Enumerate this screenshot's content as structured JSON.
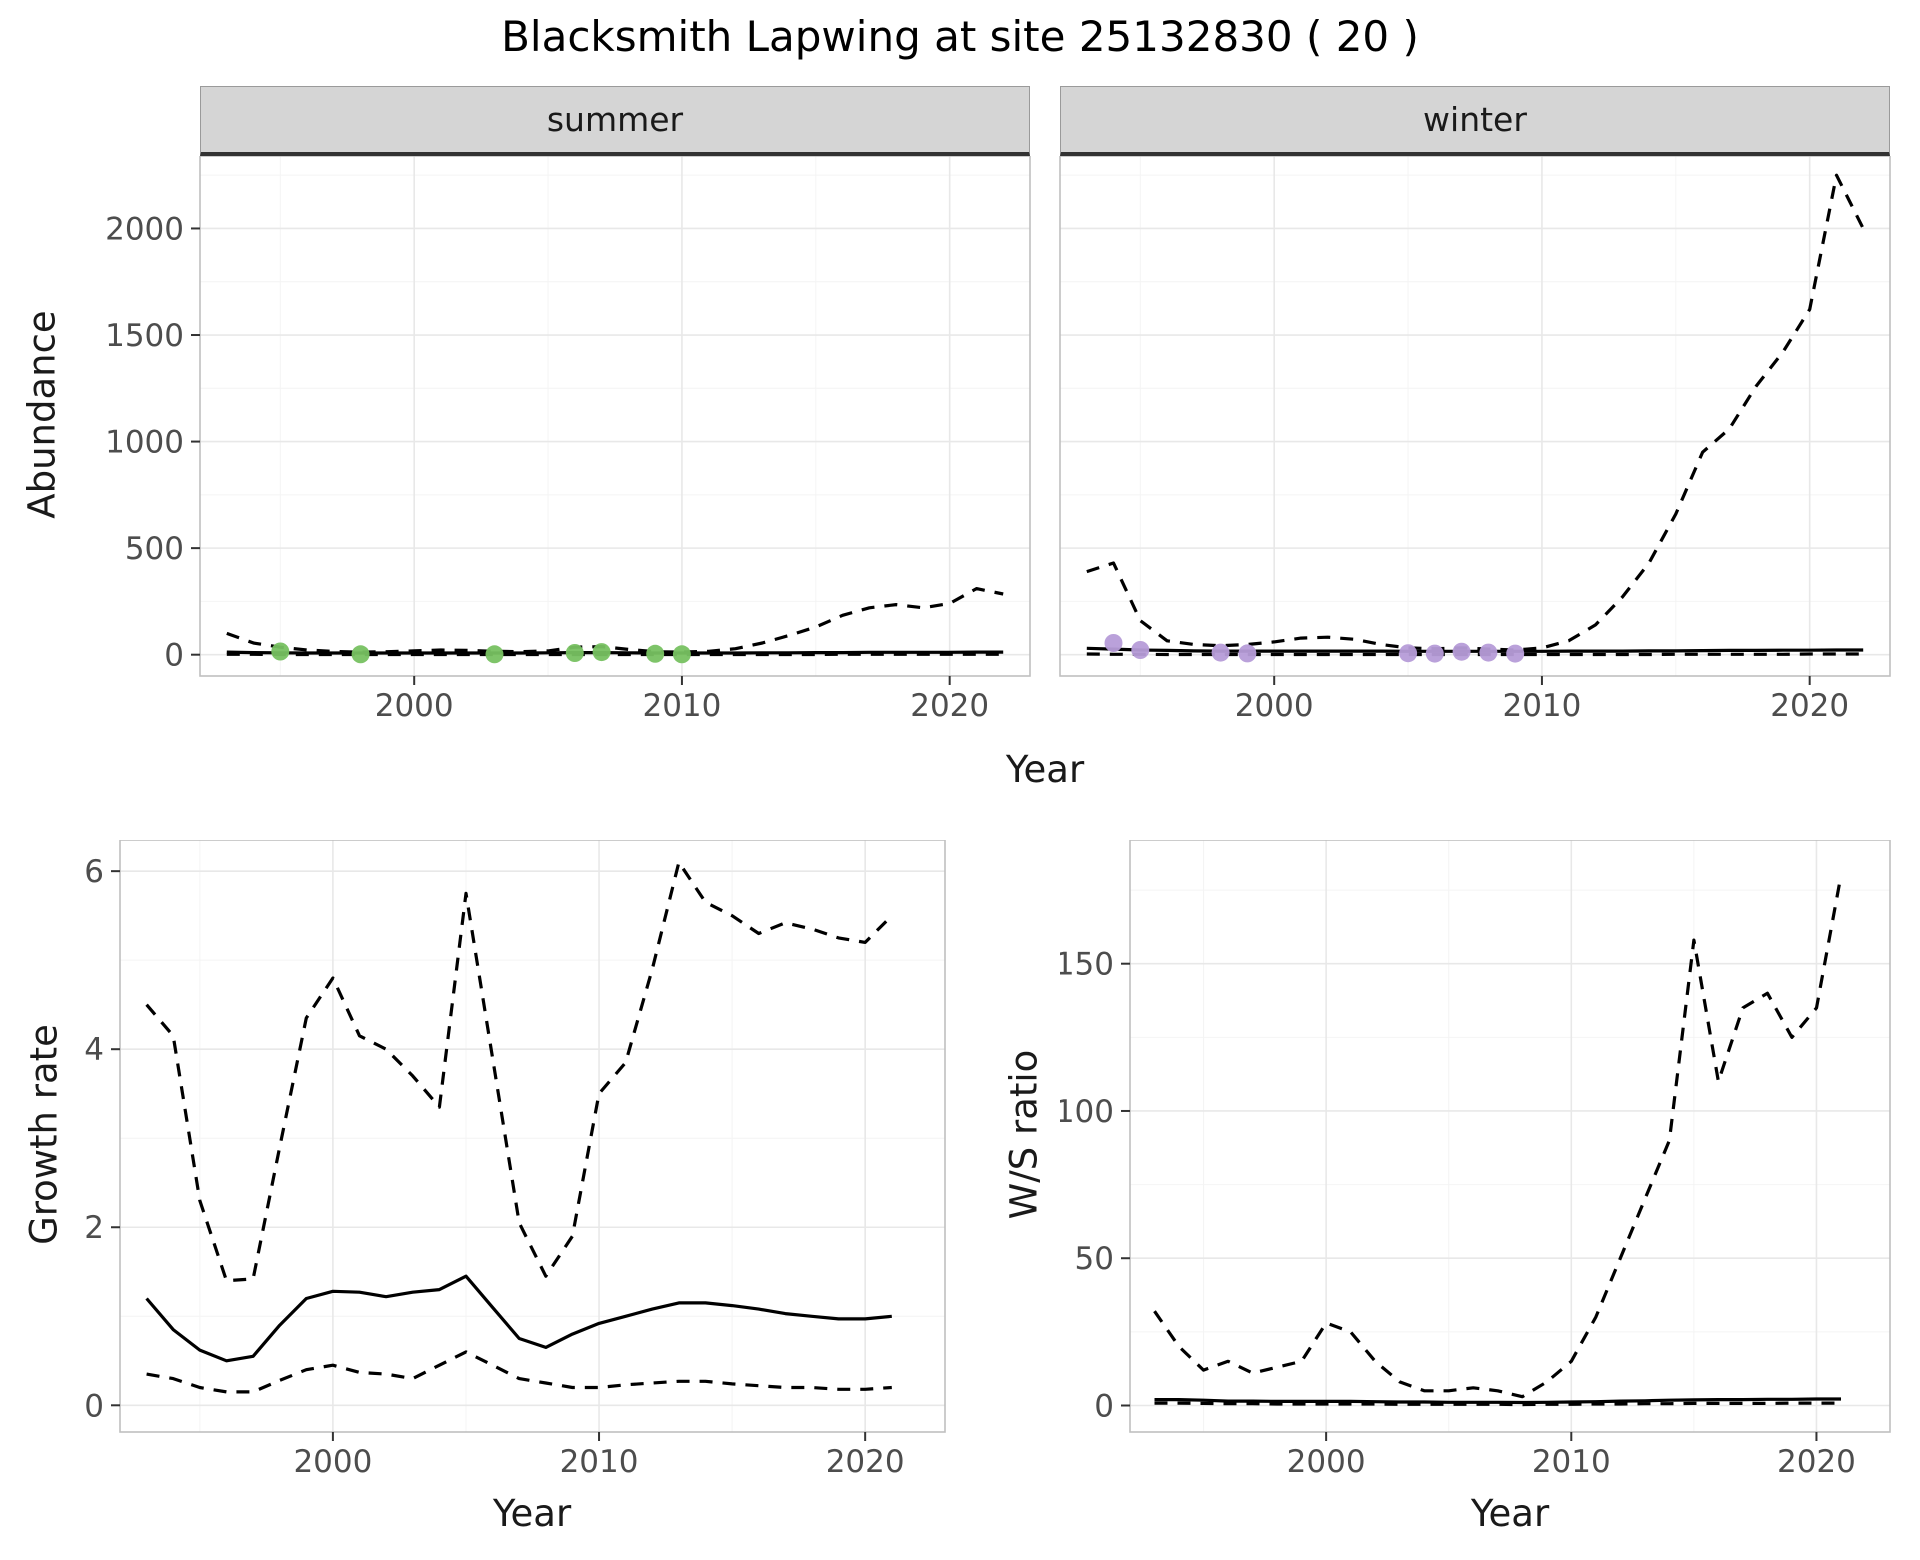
{
  "title": "Blacksmith Lapwing at site 25132830 ( 20 )",
  "facets": {
    "summer": "summer",
    "winter": "winter"
  },
  "axis_labels": {
    "abundance": "Abundance",
    "year_top": "Year",
    "growth": "Growth rate",
    "year_bottom_left": "Year",
    "ws": "W/S ratio",
    "year_bottom_right": "Year"
  },
  "colors": {
    "line": "#000000",
    "grid_major": "#e8e8e8",
    "grid_minor": "#f4f4f4",
    "panel_border": "#bfbfbf",
    "strip_bg": "#d5d5d5",
    "strip_line": "#333333",
    "tick_text": "#4d4d4d",
    "summer_point": "#77c161",
    "winter_point": "#b69cd8"
  },
  "chart_data": [
    {
      "id": "summer-abundance",
      "type": "line",
      "facet": "summer",
      "ylabel": "Abundance",
      "xlabel": "Year",
      "x_domain": [
        1992,
        2023
      ],
      "y_domain": [
        -100,
        2340
      ],
      "x_ticks": [
        2000,
        2010,
        2020
      ],
      "y_ticks": [
        0,
        500,
        1000,
        1500,
        2000
      ],
      "show_y_tick_labels": true,
      "years": [
        1993,
        1994,
        1995,
        1996,
        1997,
        1998,
        1999,
        2000,
        2001,
        2002,
        2003,
        2004,
        2005,
        2006,
        2007,
        2008,
        2009,
        2010,
        2011,
        2012,
        2013,
        2014,
        2015,
        2016,
        2017,
        2018,
        2019,
        2020,
        2021,
        2022
      ],
      "series": [
        {
          "name": "upper_ci",
          "style": "dashed",
          "values": [
            100,
            55,
            35,
            22,
            15,
            12,
            14,
            18,
            22,
            20,
            16,
            14,
            18,
            35,
            38,
            25,
            14,
            12,
            16,
            28,
            55,
            90,
            130,
            185,
            220,
            235,
            220,
            240,
            310,
            285
          ]
        },
        {
          "name": "mean",
          "style": "solid",
          "values": [
            12,
            10,
            9,
            8,
            8,
            8,
            8,
            8,
            8,
            8,
            8,
            8,
            9,
            10,
            10,
            9,
            8,
            8,
            8,
            8,
            9,
            9,
            10,
            10,
            11,
            11,
            11,
            11,
            12,
            12
          ]
        },
        {
          "name": "lower_ci",
          "style": "dashed",
          "values": [
            2,
            2,
            1,
            1,
            1,
            1,
            1,
            1,
            1,
            1,
            1,
            1,
            1,
            1,
            1,
            1,
            1,
            1,
            1,
            1,
            1,
            1,
            1,
            2,
            2,
            2,
            2,
            2,
            2,
            2
          ]
        }
      ],
      "points": {
        "name": "observed_counts",
        "color_key": "summer_point",
        "x": [
          1995,
          1998,
          2003,
          2006,
          2007,
          2009,
          2010
        ],
        "y": [
          15,
          2,
          2,
          8,
          12,
          4,
          2
        ]
      }
    },
    {
      "id": "winter-abundance",
      "type": "line",
      "facet": "winter",
      "ylabel": "Abundance",
      "xlabel": "Year",
      "x_domain": [
        1992,
        2023
      ],
      "y_domain": [
        -100,
        2340
      ],
      "x_ticks": [
        2000,
        2010,
        2020
      ],
      "y_ticks": [
        0,
        500,
        1000,
        1500,
        2000
      ],
      "show_y_tick_labels": false,
      "years": [
        1993,
        1994,
        1995,
        1996,
        1997,
        1998,
        1999,
        2000,
        2001,
        2002,
        2003,
        2004,
        2005,
        2006,
        2007,
        2008,
        2009,
        2010,
        2011,
        2012,
        2013,
        2014,
        2015,
        2016,
        2017,
        2018,
        2019,
        2020,
        2021,
        2022
      ],
      "series": [
        {
          "name": "upper_ci",
          "style": "dashed",
          "values": [
            390,
            430,
            160,
            65,
            48,
            42,
            48,
            60,
            78,
            82,
            72,
            48,
            32,
            28,
            32,
            26,
            22,
            32,
            65,
            140,
            270,
            430,
            660,
            950,
            1060,
            1260,
            1420,
            1620,
            2250,
            2000
          ]
        },
        {
          "name": "mean",
          "style": "solid",
          "values": [
            30,
            26,
            22,
            20,
            18,
            17,
            17,
            17,
            17,
            17,
            17,
            17,
            16,
            16,
            16,
            16,
            16,
            16,
            17,
            17,
            17,
            18,
            18,
            19,
            20,
            20,
            21,
            21,
            22,
            22
          ]
        },
        {
          "name": "lower_ci",
          "style": "dashed",
          "values": [
            3,
            2,
            2,
            1,
            1,
            1,
            1,
            1,
            1,
            1,
            1,
            1,
            1,
            1,
            1,
            1,
            1,
            1,
            1,
            1,
            1,
            1,
            2,
            2,
            2,
            2,
            2,
            3,
            3,
            3
          ]
        }
      ],
      "points": {
        "name": "observed_counts",
        "color_key": "winter_point",
        "x": [
          1994,
          1995,
          1998,
          1999,
          2005,
          2006,
          2007,
          2008,
          2009
        ],
        "y": [
          55,
          22,
          10,
          6,
          7,
          5,
          14,
          10,
          5
        ]
      }
    },
    {
      "id": "growth-rate",
      "type": "line",
      "ylabel": "Growth rate",
      "xlabel": "Year",
      "x_domain": [
        1992,
        2023
      ],
      "y_domain": [
        -0.3,
        6.35
      ],
      "x_ticks": [
        2000,
        2010,
        2020
      ],
      "y_ticks": [
        0,
        2,
        4,
        6
      ],
      "show_y_tick_labels": true,
      "years": [
        1993,
        1994,
        1995,
        1996,
        1997,
        1998,
        1999,
        2000,
        2001,
        2002,
        2003,
        2004,
        2005,
        2006,
        2007,
        2008,
        2009,
        2010,
        2011,
        2012,
        2013,
        2014,
        2015,
        2016,
        2017,
        2018,
        2019,
        2020,
        2021
      ],
      "series": [
        {
          "name": "upper_ci",
          "style": "dashed",
          "values": [
            4.5,
            4.15,
            2.3,
            1.4,
            1.42,
            2.9,
            4.35,
            4.8,
            4.15,
            4.0,
            3.7,
            3.35,
            5.75,
            3.9,
            2.05,
            1.45,
            1.9,
            3.5,
            3.85,
            4.9,
            6.1,
            5.65,
            5.5,
            5.3,
            5.42,
            5.35,
            5.25,
            5.2,
            5.5
          ]
        },
        {
          "name": "mean",
          "style": "solid",
          "values": [
            1.2,
            0.85,
            0.62,
            0.5,
            0.55,
            0.9,
            1.2,
            1.28,
            1.27,
            1.22,
            1.27,
            1.3,
            1.45,
            1.1,
            0.75,
            0.65,
            0.8,
            0.92,
            1.0,
            1.08,
            1.15,
            1.15,
            1.12,
            1.08,
            1.03,
            1.0,
            0.97,
            0.97,
            1.0
          ]
        },
        {
          "name": "lower_ci",
          "style": "dashed",
          "values": [
            0.35,
            0.3,
            0.2,
            0.15,
            0.15,
            0.28,
            0.4,
            0.45,
            0.37,
            0.35,
            0.3,
            0.45,
            0.6,
            0.45,
            0.3,
            0.25,
            0.2,
            0.2,
            0.23,
            0.25,
            0.27,
            0.27,
            0.24,
            0.22,
            0.2,
            0.2,
            0.18,
            0.18,
            0.2
          ]
        }
      ]
    },
    {
      "id": "ws-ratio",
      "type": "line",
      "ylabel": "W/S ratio",
      "xlabel": "Year",
      "x_domain": [
        1992,
        2023
      ],
      "y_domain": [
        -9,
        192
      ],
      "x_ticks": [
        2000,
        2010,
        2020
      ],
      "y_ticks": [
        0,
        50,
        100,
        150
      ],
      "show_y_tick_labels": true,
      "years": [
        1993,
        1994,
        1995,
        1996,
        1997,
        1998,
        1999,
        2000,
        2001,
        2002,
        2003,
        2004,
        2005,
        2006,
        2007,
        2008,
        2009,
        2010,
        2011,
        2012,
        2013,
        2014,
        2015,
        2016,
        2017,
        2018,
        2019,
        2020,
        2021
      ],
      "series": [
        {
          "name": "upper_ci",
          "style": "dashed",
          "values": [
            32,
            20,
            12,
            15,
            11,
            13,
            15,
            28,
            25,
            15,
            8,
            5,
            5,
            6,
            5,
            3,
            8,
            15,
            30,
            50,
            70,
            90,
            158,
            110,
            135,
            140,
            125,
            135,
            180
          ]
        },
        {
          "name": "mean",
          "style": "solid",
          "values": [
            2,
            2,
            1.8,
            1.5,
            1.5,
            1.4,
            1.4,
            1.4,
            1.4,
            1.3,
            1.2,
            1.2,
            1.1,
            1.1,
            1.1,
            1.0,
            1.1,
            1.2,
            1.3,
            1.5,
            1.6,
            1.8,
            1.9,
            2.0,
            2.0,
            2.1,
            2.1,
            2.2,
            2.2
          ]
        },
        {
          "name": "lower_ci",
          "style": "dashed",
          "values": [
            0.8,
            0.8,
            0.7,
            0.6,
            0.6,
            0.5,
            0.5,
            0.5,
            0.5,
            0.5,
            0.4,
            0.4,
            0.4,
            0.4,
            0.4,
            0.3,
            0.4,
            0.4,
            0.5,
            0.5,
            0.6,
            0.6,
            0.7,
            0.7,
            0.7,
            0.7,
            0.8,
            0.8,
            0.8
          ]
        }
      ]
    }
  ]
}
